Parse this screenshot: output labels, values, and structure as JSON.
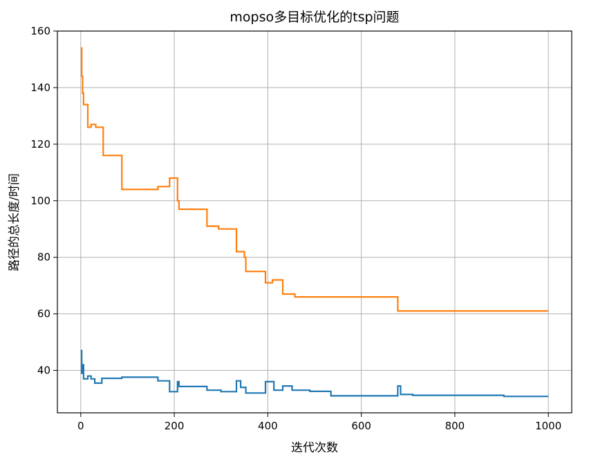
{
  "chart_data": {
    "type": "line",
    "title": "mopso多目标优化的tsp问题",
    "xlabel": "迭代次数",
    "ylabel": "路径的总长度/时间",
    "xlim": [
      -50,
      1050
    ],
    "ylim": [
      25,
      160
    ],
    "xticks": [
      0,
      200,
      400,
      600,
      800,
      1000
    ],
    "yticks": [
      40,
      60,
      80,
      100,
      120,
      140,
      160
    ],
    "grid": true,
    "series": [
      {
        "color": "#ff7f0e",
        "points": [
          [
            0,
            154
          ],
          [
            2,
            154
          ],
          [
            2,
            144
          ],
          [
            4,
            144
          ],
          [
            4,
            138
          ],
          [
            6,
            138
          ],
          [
            6,
            134
          ],
          [
            15,
            134
          ],
          [
            15,
            126
          ],
          [
            22,
            126
          ],
          [
            22,
            127
          ],
          [
            32,
            127
          ],
          [
            32,
            126
          ],
          [
            48,
            126
          ],
          [
            48,
            116
          ],
          [
            88,
            116
          ],
          [
            88,
            104
          ],
          [
            165,
            104
          ],
          [
            165,
            105
          ],
          [
            190,
            105
          ],
          [
            190,
            108
          ],
          [
            207,
            108
          ],
          [
            207,
            100
          ],
          [
            210,
            100
          ],
          [
            210,
            97
          ],
          [
            270,
            97
          ],
          [
            270,
            91
          ],
          [
            295,
            91
          ],
          [
            295,
            90
          ],
          [
            333,
            90
          ],
          [
            333,
            82
          ],
          [
            350,
            82
          ],
          [
            350,
            80
          ],
          [
            353,
            80
          ],
          [
            353,
            75
          ],
          [
            395,
            75
          ],
          [
            395,
            71
          ],
          [
            410,
            71
          ],
          [
            410,
            72
          ],
          [
            432,
            72
          ],
          [
            432,
            67
          ],
          [
            458,
            67
          ],
          [
            458,
            66
          ],
          [
            678,
            66
          ],
          [
            678,
            61
          ],
          [
            1000,
            61
          ]
        ]
      },
      {
        "color": "#1f77b4",
        "points": [
          [
            0,
            47
          ],
          [
            2,
            47
          ],
          [
            2,
            39
          ],
          [
            4,
            39
          ],
          [
            4,
            42
          ],
          [
            6,
            42
          ],
          [
            6,
            37
          ],
          [
            15,
            37
          ],
          [
            15,
            38
          ],
          [
            22,
            38
          ],
          [
            22,
            37
          ],
          [
            30,
            37
          ],
          [
            30,
            35.5
          ],
          [
            45,
            35.5
          ],
          [
            45,
            37.2
          ],
          [
            88,
            37.2
          ],
          [
            88,
            37.6
          ],
          [
            165,
            37.6
          ],
          [
            165,
            36.3
          ],
          [
            190,
            36.3
          ],
          [
            190,
            32.5
          ],
          [
            207,
            32.5
          ],
          [
            207,
            36
          ],
          [
            210,
            36
          ],
          [
            210,
            34.3
          ],
          [
            270,
            34.3
          ],
          [
            270,
            33
          ],
          [
            300,
            33
          ],
          [
            300,
            32.5
          ],
          [
            333,
            32.5
          ],
          [
            333,
            36.3
          ],
          [
            342,
            36.3
          ],
          [
            342,
            34
          ],
          [
            353,
            34
          ],
          [
            353,
            32
          ],
          [
            395,
            32
          ],
          [
            395,
            36
          ],
          [
            413,
            36
          ],
          [
            413,
            33
          ],
          [
            432,
            33
          ],
          [
            432,
            34.5
          ],
          [
            452,
            34.5
          ],
          [
            452,
            33
          ],
          [
            490,
            33
          ],
          [
            490,
            32.6
          ],
          [
            535,
            32.6
          ],
          [
            535,
            31
          ],
          [
            678,
            31
          ],
          [
            678,
            34.5
          ],
          [
            684,
            34.5
          ],
          [
            684,
            31.5
          ],
          [
            710,
            31.5
          ],
          [
            710,
            31.2
          ],
          [
            905,
            31.2
          ],
          [
            905,
            30.8
          ],
          [
            1000,
            30.8
          ]
        ]
      }
    ]
  }
}
